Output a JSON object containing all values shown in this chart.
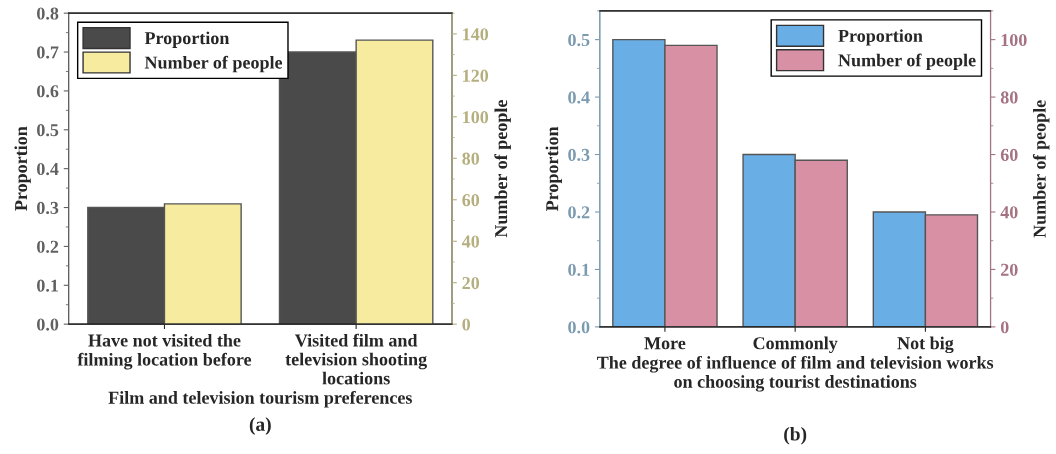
{
  "chart_data": [
    {
      "type": "bar",
      "categories": [
        "Have not visited the filming location before",
        "Visited film and television shooting locations"
      ],
      "xlabel": "Film and television tourism preferences",
      "ylabel": "Proportion",
      "y2label": "Number of people",
      "ylim": [
        0,
        0.8
      ],
      "yticks": [
        {
          "value": 0,
          "label": "0.0"
        },
        0.1,
        0.2,
        0.3,
        0.4,
        0.5,
        0.6,
        0.7,
        0.8
      ],
      "y2lim": [
        0,
        150
      ],
      "y2ticks": [
        0,
        20,
        40,
        60,
        80,
        100,
        120,
        140
      ],
      "legend": "top left",
      "grid": false,
      "annotations": [
        "(a)"
      ],
      "series": [
        {
          "name": "Proportion",
          "color": "#4a4a4a",
          "values": [
            0.3,
            0.7
          ]
        },
        {
          "name": "Number of people",
          "color": "#f7eba0",
          "values": [
            58,
            137
          ],
          "axis": "y2"
        }
      ]
    },
    {
      "type": "bar",
      "categories": [
        "More",
        "Commonly",
        "Not big"
      ],
      "xlabel": "The degree of influence of film and television works on choosing tourist destinations",
      "ylabel": "Proportion",
      "y2label": "Number of people",
      "ylim": [
        0,
        0.55
      ],
      "yticks": [
        {
          "value": 0,
          "label": "0.0"
        },
        0.1,
        0.2,
        0.3,
        0.4,
        0.5
      ],
      "y2lim": [
        0,
        110
      ],
      "y2ticks": [
        0,
        20,
        40,
        60,
        80,
        100
      ],
      "legend": "top right",
      "grid": false,
      "annotations": [
        "(b)"
      ],
      "series": [
        {
          "name": "Proportion",
          "color": "#6aaee6",
          "values": [
            0.5,
            0.3,
            0.2
          ]
        },
        {
          "name": "Number of people",
          "color": "#d891a4",
          "values": [
            98,
            58,
            39
          ],
          "axis": "y2"
        }
      ]
    }
  ]
}
